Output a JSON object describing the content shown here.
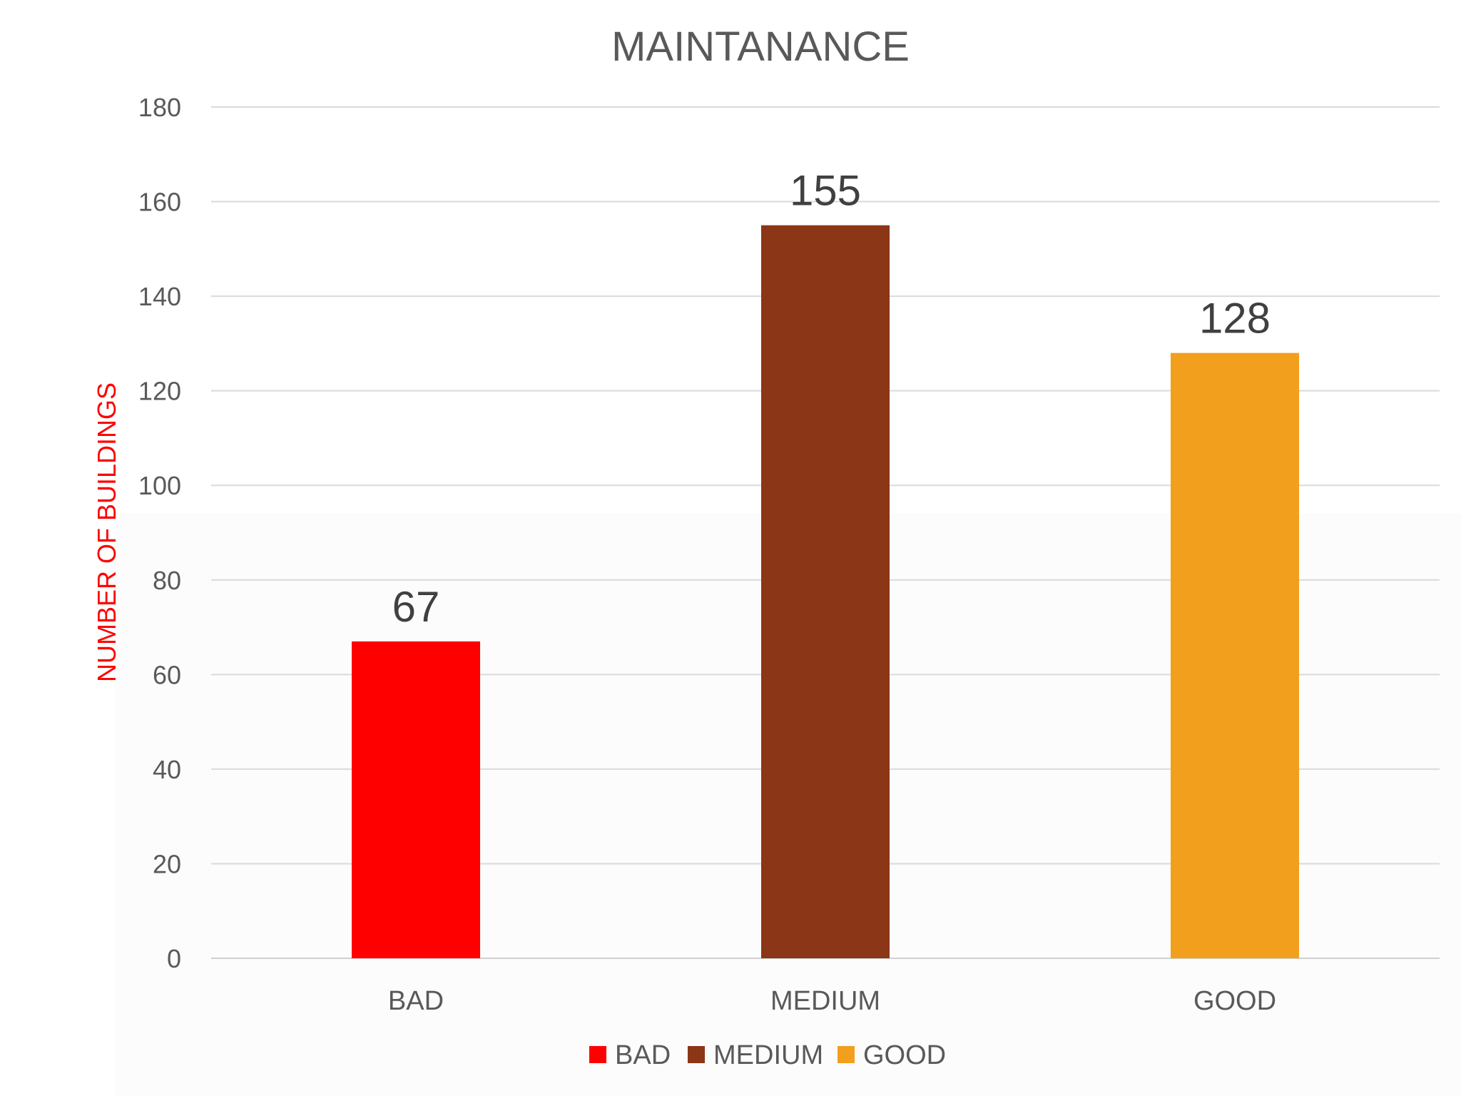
{
  "chart_data": {
    "type": "bar",
    "title": "MAINTANANCE",
    "xlabel": "",
    "ylabel": "NUMBER OF BUILDINGS",
    "ylabel_color": "#FF0000",
    "categories": [
      "BAD",
      "MEDIUM",
      "GOOD"
    ],
    "values": [
      67,
      155,
      128
    ],
    "colors": [
      "#FF0000",
      "#8B3616",
      "#F29F1D"
    ],
    "ylim": [
      0,
      180
    ],
    "yticks": [
      0,
      20,
      40,
      60,
      80,
      100,
      120,
      140,
      160,
      180
    ],
    "grid": true,
    "data_labels": true,
    "legend": {
      "placement": "bottom",
      "entries": [
        "BAD",
        "MEDIUM",
        "GOOD"
      ]
    }
  }
}
